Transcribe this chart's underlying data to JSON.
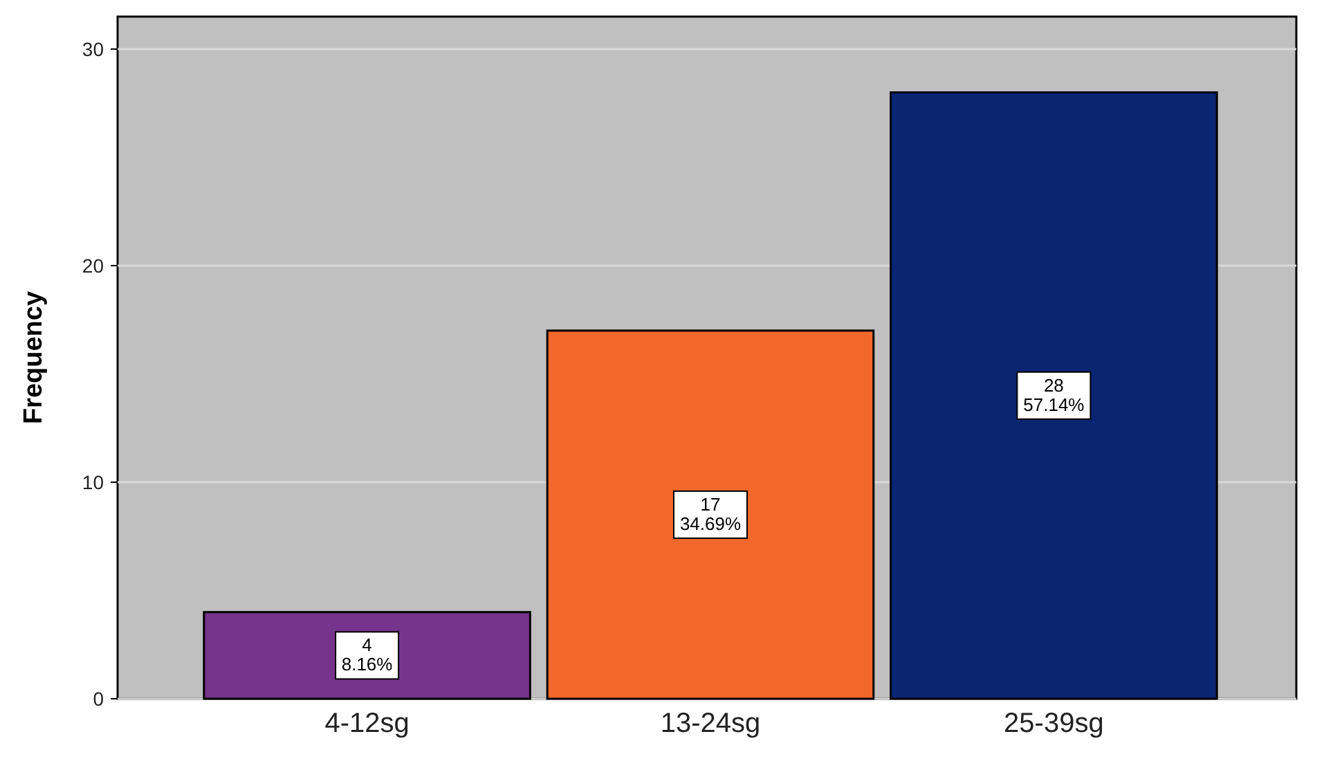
{
  "chart_data": {
    "type": "bar",
    "ylabel": "Frequency",
    "categories": [
      "4-12sg",
      "13-24sg",
      "25-39sg"
    ],
    "values": [
      4,
      17,
      28
    ],
    "colors": [
      "#76348c",
      "#f2682a",
      "#0a2572"
    ],
    "value_labels": [
      "4\n8.16%",
      "17\n34.69%",
      "28\n57.14%"
    ],
    "ylim": [
      0,
      31.5
    ],
    "yticks": [
      0,
      10,
      20,
      30
    ],
    "grid": "y"
  }
}
